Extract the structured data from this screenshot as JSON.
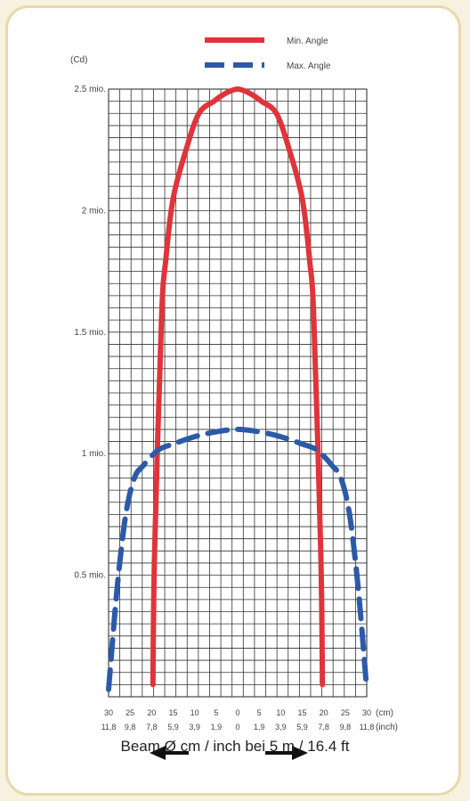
{
  "chart_data": {
    "type": "line",
    "ylabel": "(Cd)",
    "y_ticks": [
      "0.5 mio.",
      "1 mio.",
      "1.5 mio.",
      "2 mio.",
      "2.5 mio."
    ],
    "y_tick_values": [
      0.5,
      1,
      1.5,
      2,
      2.5
    ],
    "ylim": [
      0,
      2.5
    ],
    "x_ticks_cm": [
      "30",
      "25",
      "20",
      "15",
      "10",
      "5",
      "0",
      "5",
      "10",
      "15",
      "20",
      "25",
      "30"
    ],
    "x_ticks_inch": [
      "11,8",
      "9,8",
      "7,8",
      "5,9",
      "3,9",
      "1,9",
      "0",
      "1,9",
      "3,9",
      "5,9",
      "7,8",
      "9,8",
      "11,8"
    ],
    "x_tick_values": [
      -30,
      -25,
      -20,
      -15,
      -10,
      -5,
      0,
      5,
      10,
      15,
      20,
      25,
      30
    ],
    "xlim": [
      -30,
      30
    ],
    "x_unit_cm": "(cm)",
    "x_unit_inch": "(inch)",
    "grid": true,
    "legend_position": "top",
    "series": [
      {
        "name": "Min. Angle",
        "color": "#e0343b",
        "style": "solid",
        "x": [
          -19.7,
          -19.3,
          -17.7,
          -16.7,
          -15,
          -12,
          -9,
          -5.5,
          -4,
          -2,
          0,
          2,
          4,
          5.5,
          9,
          12,
          15,
          16.7,
          17.7,
          19.3,
          19.7
        ],
        "y": [
          0.05,
          0.6,
          1.55,
          1.8,
          2.05,
          2.25,
          2.4,
          2.45,
          2.47,
          2.49,
          2.5,
          2.49,
          2.47,
          2.45,
          2.4,
          2.25,
          2.05,
          1.8,
          1.55,
          0.6,
          0.05
        ]
      },
      {
        "name": "Max. Angle",
        "color": "#2c5aa8",
        "style": "dashed",
        "x": [
          -30,
          -28,
          -26,
          -24,
          -22,
          -20,
          -18,
          -15,
          -10,
          -5,
          0,
          5,
          10,
          15,
          18,
          20,
          22,
          24,
          26,
          28,
          30
        ],
        "y": [
          0.03,
          0.45,
          0.75,
          0.9,
          0.95,
          0.99,
          1.02,
          1.04,
          1.07,
          1.09,
          1.1,
          1.09,
          1.07,
          1.04,
          1.02,
          0.99,
          0.95,
          0.9,
          0.75,
          0.45,
          0.03
        ]
      }
    ]
  },
  "caption": "Beam Ø cm / inch bei 5 m / 16.4 ft",
  "arrows": {
    "left": "arrow-left-icon",
    "right": "arrow-right-icon"
  }
}
